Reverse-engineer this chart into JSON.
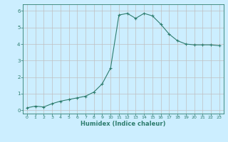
{
  "x": [
    0,
    1,
    2,
    3,
    4,
    5,
    6,
    7,
    8,
    9,
    10,
    11,
    12,
    13,
    14,
    15,
    16,
    17,
    18,
    19,
    20,
    21,
    22,
    23
  ],
  "y": [
    0.15,
    0.25,
    0.2,
    0.4,
    0.55,
    0.65,
    0.75,
    0.85,
    1.1,
    1.6,
    2.55,
    5.75,
    5.85,
    5.55,
    5.85,
    5.7,
    5.2,
    4.6,
    4.2,
    4.0,
    3.95,
    3.95,
    3.95,
    3.9
  ],
  "xlabel": "Humidex (Indice chaleur)",
  "xlim": [
    -0.5,
    23.5
  ],
  "ylim": [
    -0.2,
    6.4
  ],
  "yticks": [
    0,
    1,
    2,
    3,
    4,
    5,
    6
  ],
  "xticks": [
    0,
    1,
    2,
    3,
    4,
    5,
    6,
    7,
    8,
    9,
    10,
    11,
    12,
    13,
    14,
    15,
    16,
    17,
    18,
    19,
    20,
    21,
    22,
    23
  ],
  "line_color": "#2e7d6e",
  "marker": "+",
  "bg_color": "#cceeff",
  "grid_color": "#c0c0c0",
  "grid_color_major": "#c8c8c8",
  "axis_color": "#2e7d6e",
  "tick_color": "#2e7d6e",
  "label_color": "#2e7d6e",
  "tick_fontsize": 4.5,
  "xlabel_fontsize": 6.0
}
